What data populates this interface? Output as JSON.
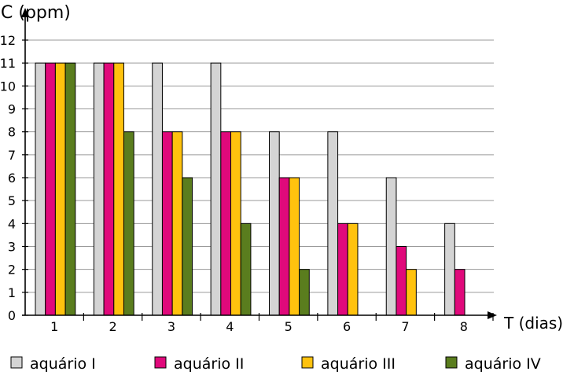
{
  "chart_data": {
    "type": "bar",
    "ylabel": "C (ppm)",
    "xlabel": "T (dias)",
    "ylim": [
      0,
      12
    ],
    "yticks": [
      "0",
      "1",
      "2",
      "3",
      "4",
      "5",
      "6",
      "7",
      "8",
      "9",
      "10",
      "11",
      "12"
    ],
    "categories": [
      "1",
      "2",
      "3",
      "4",
      "5",
      "6",
      "7",
      "8"
    ],
    "grid": true,
    "legend_position": "bottom",
    "series": [
      {
        "name": "aquário I",
        "color": "#d4d4d4",
        "values": [
          11,
          11,
          11,
          11,
          8,
          8,
          6,
          4
        ]
      },
      {
        "name": "aquário II",
        "color": "#e0097b",
        "values": [
          11,
          11,
          8,
          8,
          6,
          4,
          3,
          2
        ]
      },
      {
        "name": "aquário III",
        "color": "#ffc20e",
        "values": [
          11,
          11,
          8,
          8,
          6,
          4,
          2,
          null
        ]
      },
      {
        "name": "aquário IV",
        "color": "#5a7d1e",
        "values": [
          11,
          8,
          6,
          4,
          2,
          null,
          null,
          null
        ]
      }
    ]
  }
}
